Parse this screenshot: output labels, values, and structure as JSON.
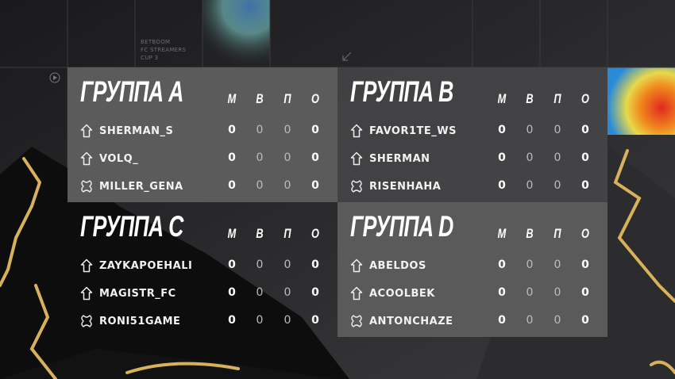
{
  "brand": [
    "BETBOOM",
    "FC STREAMERS",
    "CUP 3"
  ],
  "columns": [
    "М",
    "В",
    "П",
    "О"
  ],
  "colors": {
    "panel": "#5b5b5b",
    "background": "#1c1c1e",
    "accent_gold": "#d8b25a"
  },
  "groups": [
    {
      "title": "ГРУППА A",
      "players": [
        {
          "name": "SHERMAN_S",
          "icon": "home-up-icon",
          "stats": [
            "0",
            "0",
            "0",
            "0"
          ]
        },
        {
          "name": "VOLQ_",
          "icon": "home-up-icon",
          "stats": [
            "0",
            "0",
            "0",
            "0"
          ]
        },
        {
          "name": "MILLER_GENA",
          "icon": "cross-icon",
          "stats": [
            "0",
            "0",
            "0",
            "0"
          ]
        }
      ]
    },
    {
      "title": "ГРУППА B",
      "players": [
        {
          "name": "FAVOR1TE_WS",
          "icon": "home-up-icon",
          "stats": [
            "0",
            "0",
            "0",
            "0"
          ]
        },
        {
          "name": "SHERMAN",
          "icon": "home-up-icon",
          "stats": [
            "0",
            "0",
            "0",
            "0"
          ]
        },
        {
          "name": "RISENHAHA",
          "icon": "cross-icon",
          "stats": [
            "0",
            "0",
            "0",
            "0"
          ]
        }
      ]
    },
    {
      "title": "ГРУППА C",
      "players": [
        {
          "name": "ZAYKAPOEHALI",
          "icon": "home-up-icon",
          "stats": [
            "0",
            "0",
            "0",
            "0"
          ]
        },
        {
          "name": "MAGISTR_FC",
          "icon": "home-up-icon",
          "stats": [
            "0",
            "0",
            "0",
            "0"
          ]
        },
        {
          "name": "RONI51GAME",
          "icon": "cross-icon",
          "stats": [
            "0",
            "0",
            "0",
            "0"
          ]
        }
      ]
    },
    {
      "title": "ГРУППА D",
      "players": [
        {
          "name": "ABELDOS",
          "icon": "home-up-icon",
          "stats": [
            "0",
            "0",
            "0",
            "0"
          ]
        },
        {
          "name": "ACOOLBEK",
          "icon": "home-up-icon",
          "stats": [
            "0",
            "0",
            "0",
            "0"
          ]
        },
        {
          "name": "ANTONCHAZE",
          "icon": "cross-icon",
          "stats": [
            "0",
            "0",
            "0",
            "0"
          ]
        }
      ]
    }
  ]
}
